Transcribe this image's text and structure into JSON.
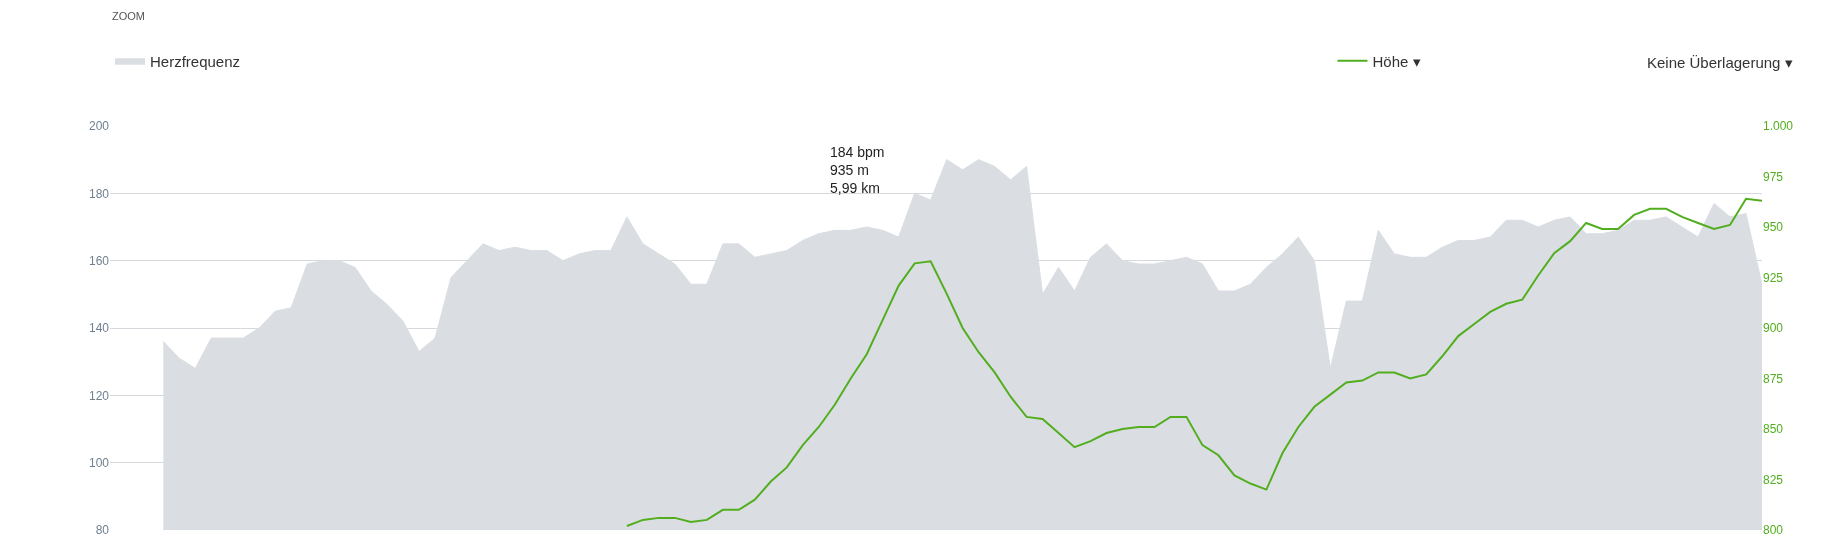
{
  "chart_data": {
    "type": "area",
    "categories": [
      null,
      null,
      null,
      null,
      null,
      null,
      null,
      null,
      null,
      null,
      null,
      null,
      null,
      null,
      null,
      null,
      null,
      null,
      null,
      null,
      null,
      null,
      null,
      null,
      null,
      null,
      null,
      null,
      null,
      null,
      null,
      null,
      null,
      null,
      null,
      null,
      null,
      null,
      null,
      null,
      null,
      null,
      null,
      null,
      null,
      null,
      null,
      null,
      null,
      null,
      null,
      null,
      null,
      null,
      null,
      null,
      null,
      null,
      null,
      null,
      null,
      null,
      null,
      null,
      null,
      null,
      null,
      null,
      null,
      null,
      null,
      null,
      null,
      null,
      null,
      null,
      null,
      null,
      null,
      null,
      null,
      null,
      null,
      null,
      null,
      null,
      null,
      null,
      null,
      null,
      null,
      null,
      null,
      null,
      null,
      null,
      null,
      null,
      null,
      null,
      null
    ],
    "series": [
      {
        "name": "Herzfrequenz",
        "color": "#dadee3",
        "values": [
          136,
          131,
          128,
          137,
          137,
          137,
          140,
          145,
          146,
          159,
          160,
          160,
          158,
          151,
          147,
          142,
          133,
          137,
          155,
          160,
          165,
          163,
          164,
          163,
          163,
          160,
          162,
          163,
          163,
          173,
          165,
          162,
          159,
          153,
          153,
          165,
          165,
          161,
          162,
          163,
          166,
          168,
          169,
          169,
          170,
          169,
          167,
          180,
          178,
          190,
          187,
          190,
          188,
          184,
          188,
          150,
          158,
          151,
          161,
          165,
          160,
          159,
          159,
          160,
          161,
          159,
          151,
          151,
          153,
          158,
          162,
          167,
          160,
          128,
          148,
          148,
          169,
          162,
          161,
          161,
          164,
          166,
          166,
          167,
          172,
          172,
          170,
          172,
          173,
          168,
          168,
          169,
          172,
          172,
          173,
          170,
          167,
          177,
          173,
          174,
          153
        ]
      },
      {
        "name": "Höhe ▾",
        "type": "line",
        "axis": "y2",
        "color": "#52ae1f",
        "values": [
          null,
          null,
          null,
          null,
          null,
          null,
          null,
          null,
          null,
          null,
          null,
          null,
          null,
          null,
          null,
          null,
          null,
          null,
          null,
          null,
          null,
          null,
          null,
          null,
          null,
          null,
          null,
          null,
          null,
          802,
          805,
          806,
          806,
          804,
          805,
          810,
          810,
          815,
          824,
          831,
          842,
          851,
          862,
          875,
          887,
          904,
          921,
          932,
          933,
          917,
          900,
          888,
          878,
          866,
          856,
          855,
          848,
          841,
          844,
          848,
          850,
          851,
          851,
          856,
          856,
          842,
          837,
          827,
          823,
          820,
          838,
          851,
          861,
          867,
          873,
          874,
          878,
          878,
          875,
          877,
          886,
          896,
          902,
          908,
          912,
          914,
          926,
          937,
          943,
          952,
          949,
          949,
          956,
          959,
          959,
          955,
          952,
          949,
          951,
          964,
          963
        ]
      }
    ],
    "ylim": [
      80,
      200
    ],
    "yticks": [
      80,
      100,
      120,
      140,
      160,
      180,
      200
    ],
    "y2lim": [
      800,
      1000
    ],
    "y2ticks": [
      800,
      825,
      850,
      875,
      900,
      925,
      950,
      975,
      {
        "value": 1000,
        "label": "1.000"
      }
    ],
    "grid": "y",
    "legend": "top",
    "annotations": [
      "ZOOM",
      "184 bpm\n935 m\n5,99 km",
      "Keine Überlagerung ▾"
    ]
  }
}
